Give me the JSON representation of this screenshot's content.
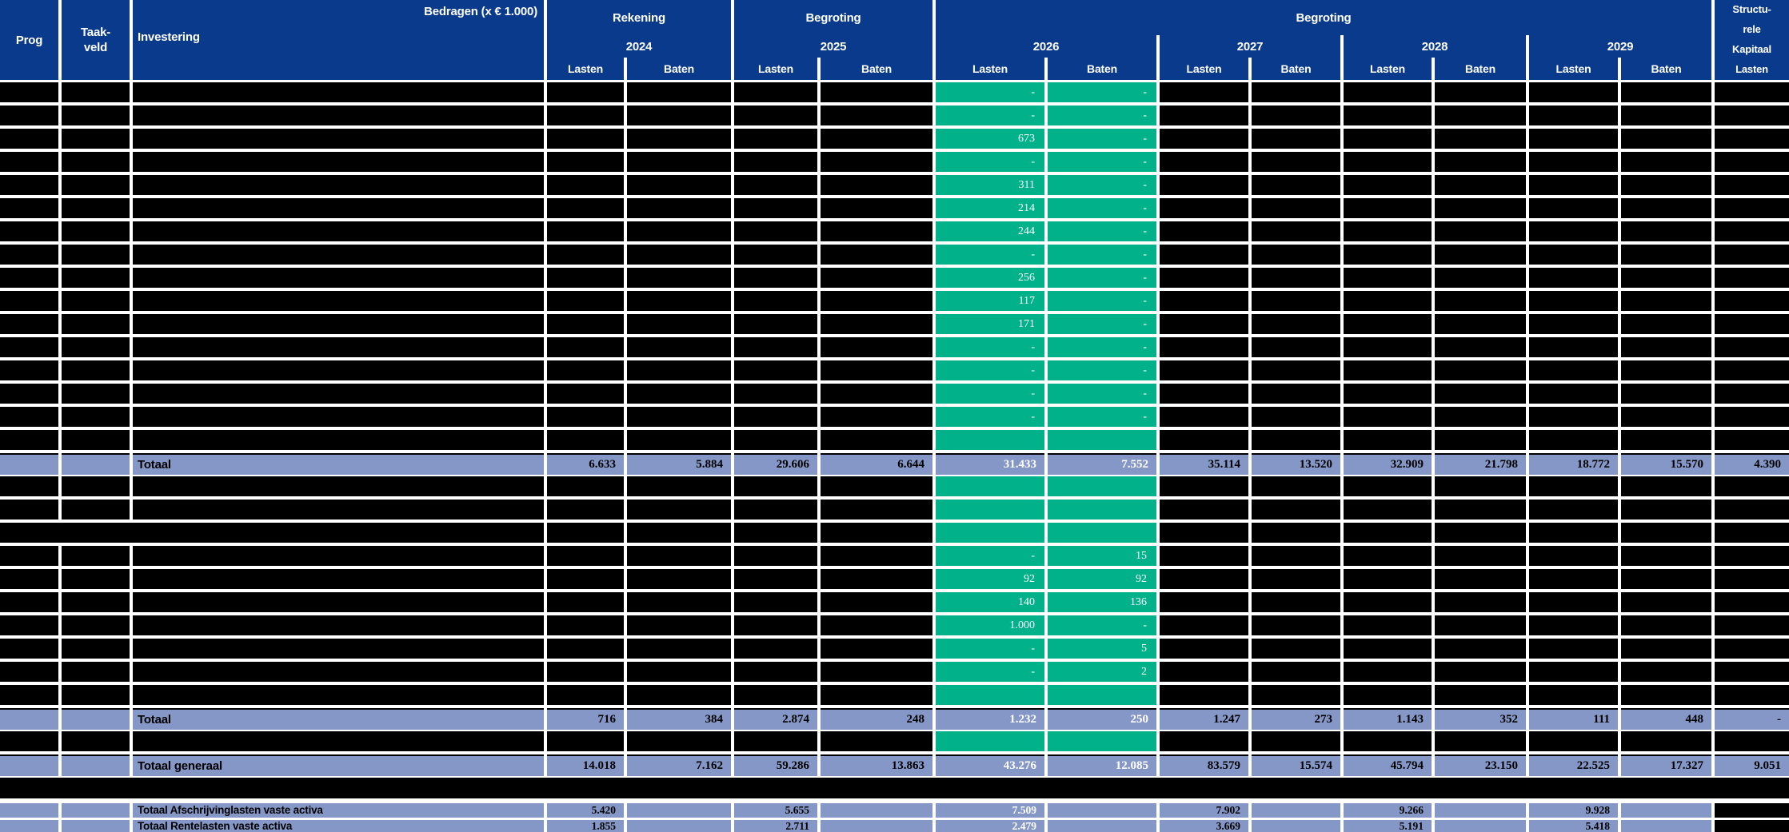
{
  "colors": {
    "header_blue": "#0a3a8c",
    "highlight_green": "#00b189",
    "total_lavender": "#8597c6",
    "redacted_black": "#000000"
  },
  "header": {
    "prog": "Prog",
    "taakveld_line1": "Taak-",
    "taakveld_line2": "veld",
    "investering": "Investering",
    "bedragen": "Bedragen (x € 1.000)",
    "lasten": "Lasten",
    "baten": "Baten",
    "groups": [
      {
        "label": "Rekening",
        "year": "2024"
      },
      {
        "label": "Begroting",
        "year": "2025"
      },
      {
        "label": "Begroting"
      }
    ],
    "begroting_years": [
      "2026",
      "2027",
      "2028",
      "2029"
    ],
    "struct_lines": [
      "Structu-",
      "rele",
      "Kapitaal",
      "Lasten"
    ]
  },
  "body": {
    "rows": [
      {
        "type": "redacted",
        "l2026": "-",
        "b2026": "-"
      },
      {
        "type": "redacted",
        "l2026": "-",
        "b2026": "-"
      },
      {
        "type": "redacted",
        "l2026": "673",
        "b2026": "-"
      },
      {
        "type": "redacted",
        "l2026": "-",
        "b2026": "-"
      },
      {
        "type": "redacted",
        "l2026": "311",
        "b2026": "-"
      },
      {
        "type": "redacted",
        "l2026": "214",
        "b2026": "-"
      },
      {
        "type": "redacted",
        "l2026": "244",
        "b2026": "-"
      },
      {
        "type": "redacted",
        "l2026": "-",
        "b2026": "-"
      },
      {
        "type": "redacted",
        "l2026": "256",
        "b2026": "-"
      },
      {
        "type": "redacted",
        "l2026": "117",
        "b2026": "-"
      },
      {
        "type": "redacted",
        "l2026": "171",
        "b2026": "-"
      },
      {
        "type": "redacted",
        "l2026": "-",
        "b2026": "-"
      },
      {
        "type": "redacted",
        "l2026": "-",
        "b2026": "-"
      },
      {
        "type": "redacted",
        "l2026": "-",
        "b2026": "-"
      },
      {
        "type": "redacted",
        "l2026": "-",
        "b2026": "-"
      },
      {
        "type": "redacted",
        "l2026": "",
        "b2026": ""
      },
      {
        "type": "total",
        "label": "Totaal",
        "values": [
          "6.633",
          "5.884",
          "29.606",
          "6.644",
          "31.433",
          "7.552",
          "35.114",
          "13.520",
          "32.909",
          "21.798",
          "18.772",
          "15.570",
          "4.390"
        ]
      },
      {
        "type": "redacted",
        "l2026": "",
        "b2026": ""
      },
      {
        "type": "redacted",
        "l2026": "",
        "b2026": ""
      },
      {
        "type": "redacted_merged",
        "l2026": "",
        "b2026": ""
      },
      {
        "type": "redacted",
        "l2026": "-",
        "b2026": "15"
      },
      {
        "type": "redacted",
        "l2026": "92",
        "b2026": "92"
      },
      {
        "type": "redacted",
        "l2026": "140",
        "b2026": "136"
      },
      {
        "type": "redacted",
        "l2026": "1.000",
        "b2026": "-"
      },
      {
        "type": "redacted",
        "l2026": "-",
        "b2026": "5"
      },
      {
        "type": "redacted",
        "l2026": "-",
        "b2026": "2"
      },
      {
        "type": "redacted",
        "l2026": "",
        "b2026": ""
      },
      {
        "type": "total",
        "label": "Totaal",
        "values": [
          "716",
          "384",
          "2.874",
          "248",
          "1.232",
          "250",
          "1.247",
          "273",
          "1.143",
          "352",
          "111",
          "448",
          "-"
        ]
      },
      {
        "type": "redacted",
        "l2026": "",
        "b2026": ""
      },
      {
        "type": "total",
        "label": "Totaal generaal",
        "values": [
          "14.018",
          "7.162",
          "59.286",
          "13.863",
          "43.276",
          "12.085",
          "83.579",
          "15.574",
          "45.794",
          "23.150",
          "22.525",
          "17.327",
          "9.051"
        ]
      },
      {
        "type": "band"
      },
      {
        "type": "summary",
        "label": "Totaal Afschrijvinglasten vaste activa",
        "values": [
          "5.420",
          "",
          "5.655",
          "",
          "7.509",
          "",
          "7.902",
          "",
          "9.266",
          "",
          "9.928",
          ""
        ]
      },
      {
        "type": "summary",
        "label": "Totaal Rentelasten vaste activa",
        "values": [
          "1.855",
          "",
          "2.711",
          "",
          "2.479",
          "",
          "3.669",
          "",
          "5.191",
          "",
          "5.418",
          ""
        ]
      }
    ]
  }
}
